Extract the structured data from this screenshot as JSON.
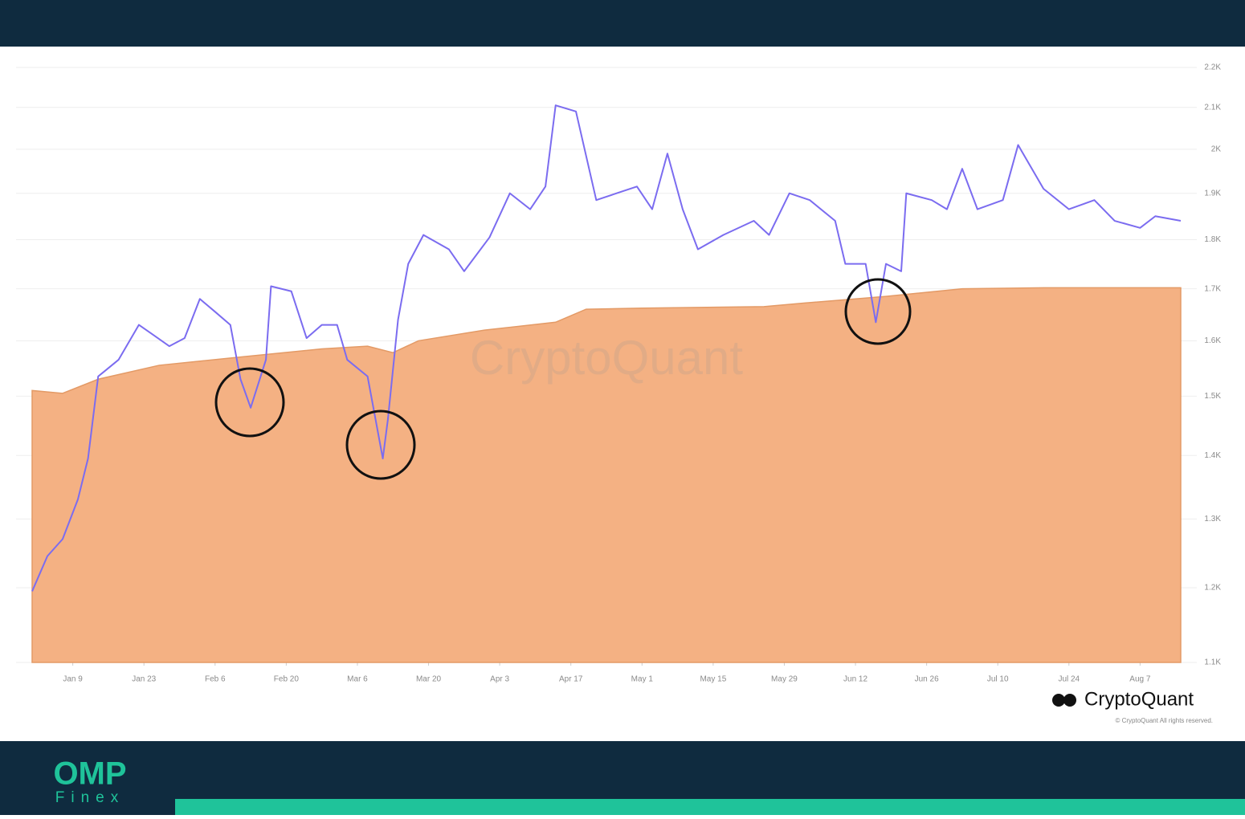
{
  "chart_data": {
    "type": "line",
    "watermark": "CryptoQuant",
    "source": "CryptoQuant",
    "copyright": "© CryptoQuant All rights reserved.",
    "yscale": "log",
    "grid": true,
    "xlim": [
      1,
      227
    ],
    "xticks": [
      {
        "value": 9,
        "label": "Jan 9"
      },
      {
        "value": 23,
        "label": "Jan 23"
      },
      {
        "value": 37,
        "label": "Feb 6"
      },
      {
        "value": 51,
        "label": "Feb 20"
      },
      {
        "value": 65,
        "label": "Mar 6"
      },
      {
        "value": 79,
        "label": "Mar 20"
      },
      {
        "value": 93,
        "label": "Apr 3"
      },
      {
        "value": 107,
        "label": "Apr 17"
      },
      {
        "value": 121,
        "label": "May 1"
      },
      {
        "value": 135,
        "label": "May 15"
      },
      {
        "value": 149,
        "label": "May 29"
      },
      {
        "value": 163,
        "label": "Jun 12"
      },
      {
        "value": 177,
        "label": "Jun 26"
      },
      {
        "value": 191,
        "label": "Jul 10"
      },
      {
        "value": 205,
        "label": "Jul 24"
      },
      {
        "value": 219,
        "label": "Aug 7"
      }
    ],
    "ylim": [
      1100,
      2200
    ],
    "yticks": [
      {
        "value": 1100,
        "label": "1.1K"
      },
      {
        "value": 1200,
        "label": "1.2K"
      },
      {
        "value": 1300,
        "label": "1.3K"
      },
      {
        "value": 1400,
        "label": "1.4K"
      },
      {
        "value": 1500,
        "label": "1.5K"
      },
      {
        "value": 1600,
        "label": "1.6K"
      },
      {
        "value": 1700,
        "label": "1.7K"
      },
      {
        "value": 1800,
        "label": "1.8K"
      },
      {
        "value": 1900,
        "label": "1.9K"
      },
      {
        "value": 2000,
        "label": "2K"
      },
      {
        "value": 2100,
        "label": "2.1K"
      },
      {
        "value": 2200,
        "label": "2.2K"
      }
    ],
    "series": [
      {
        "style": "line",
        "color": "#7b6cf0",
        "x": [
          1,
          4,
          7,
          10,
          12,
          14,
          18,
          22,
          25,
          28,
          31,
          34,
          37,
          40,
          42,
          44,
          47,
          48,
          52,
          55,
          58,
          61,
          63,
          67,
          70,
          71,
          73,
          75,
          78,
          83,
          86,
          91,
          95,
          99,
          102,
          104,
          108,
          112,
          116,
          120,
          123,
          126,
          129,
          132,
          137,
          143,
          146,
          150,
          154,
          159,
          161,
          165,
          167,
          169,
          172,
          173,
          178,
          181,
          184,
          187,
          192,
          195,
          200,
          205,
          210,
          214,
          219,
          222,
          227
        ],
        "values": [
          1195,
          1245,
          1270,
          1330,
          1395,
          1535,
          1565,
          1630,
          1610,
          1590,
          1605,
          1680,
          1655,
          1630,
          1530,
          1480,
          1565,
          1705,
          1695,
          1605,
          1630,
          1630,
          1565,
          1535,
          1395,
          1460,
          1640,
          1750,
          1810,
          1780,
          1735,
          1805,
          1900,
          1865,
          1915,
          2105,
          2090,
          1885,
          1900,
          1915,
          1865,
          1990,
          1865,
          1780,
          1810,
          1840,
          1810,
          1900,
          1885,
          1840,
          1750,
          1750,
          1635,
          1750,
          1735,
          1900,
          1885,
          1865,
          1955,
          1865,
          1885,
          2010,
          1910,
          1865,
          1885,
          1840,
          1825,
          1850,
          1840
        ]
      },
      {
        "style": "area",
        "color": "#f4b183",
        "x": [
          1,
          7,
          14,
          26,
          42,
          58,
          67,
          72,
          77,
          90,
          104,
          110,
          121,
          145,
          153,
          169,
          184,
          200,
          227
        ],
        "values": [
          1510,
          1505,
          1530,
          1555,
          1570,
          1585,
          1590,
          1578,
          1600,
          1620,
          1635,
          1660,
          1662,
          1665,
          1672,
          1685,
          1700,
          1702,
          1702
        ]
      }
    ]
  },
  "brand": {
    "name": "OMP",
    "tagline": "Finex"
  }
}
